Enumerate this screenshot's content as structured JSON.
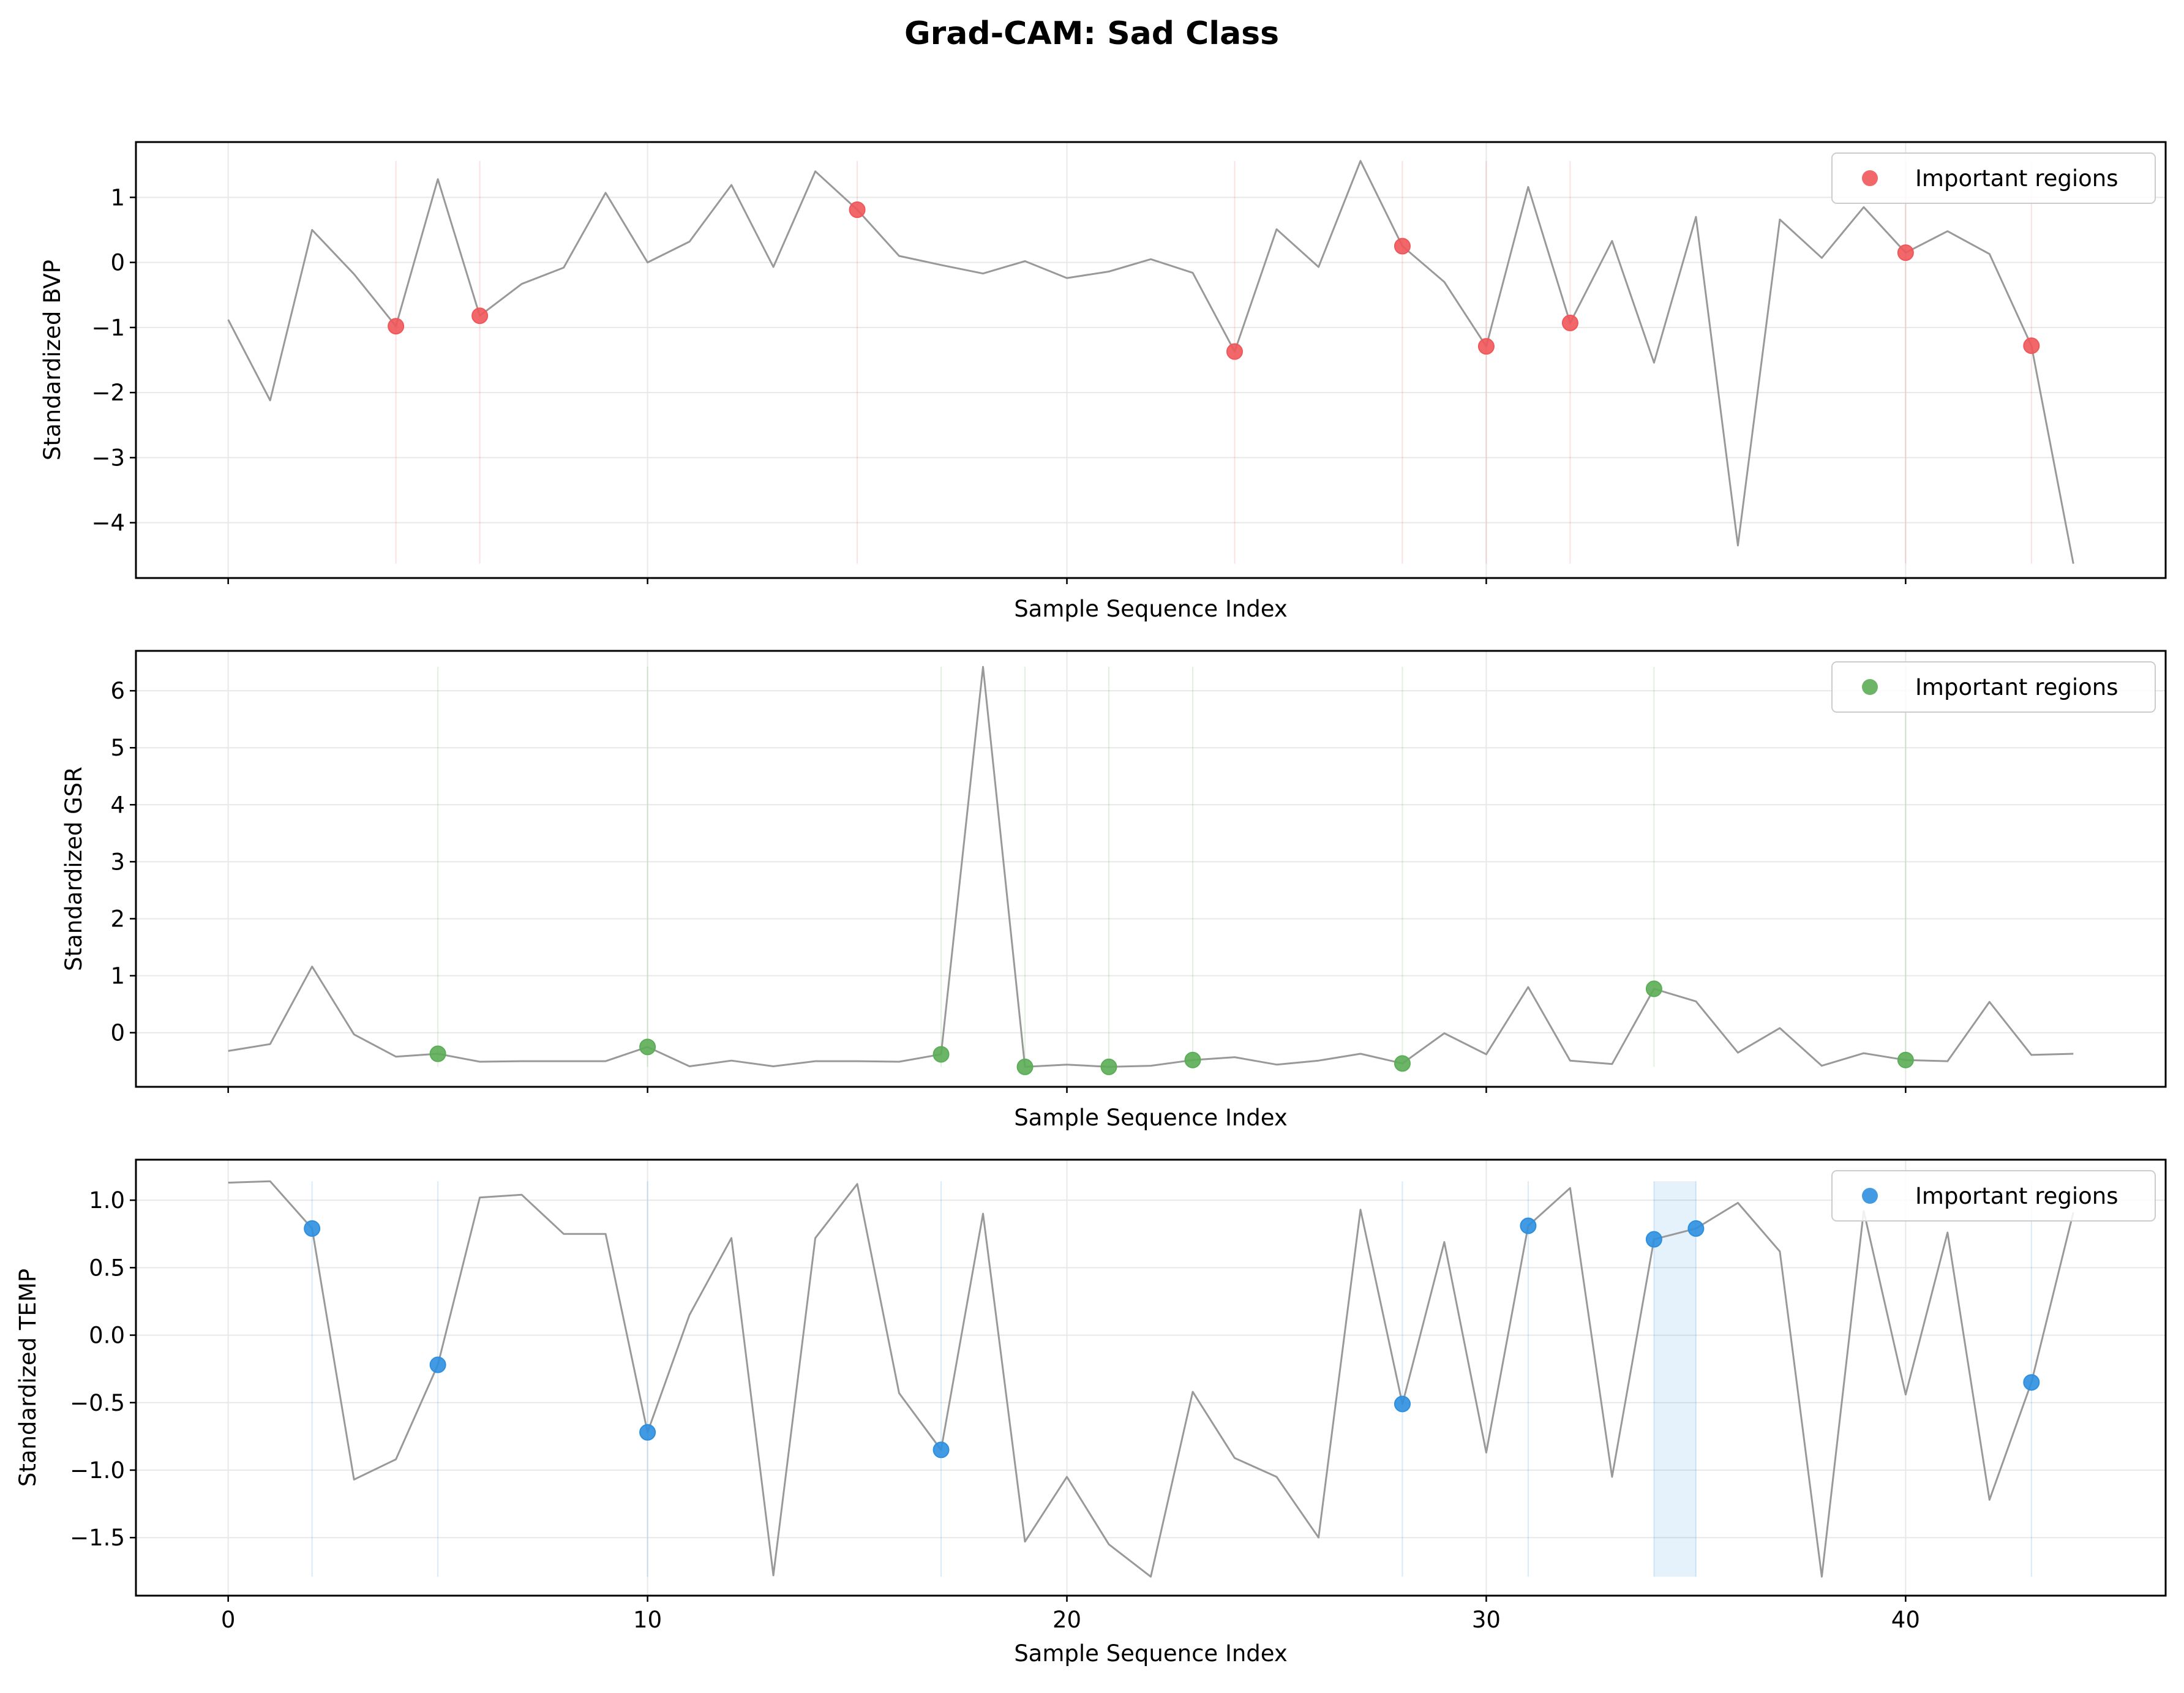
{
  "chart_data": {
    "title": "Grad-CAM: Sad Class",
    "type": "line",
    "panels": [
      {
        "ylabel": "Standardized BVP",
        "xlabel": "Sample Sequence Index",
        "legend_label": "Important regions",
        "legend_position": "top-right",
        "marker_color": "#f0575a",
        "ylim": [
          -4.85,
          1.85
        ],
        "yticks": [
          1,
          0,
          -1,
          -2,
          -3,
          -4
        ],
        "ytick_labels": [
          "1",
          "0",
          "−1",
          "−2",
          "−3",
          "−4"
        ],
        "x": [
          0,
          1,
          2,
          3,
          4,
          5,
          6,
          7,
          8,
          9,
          10,
          11,
          12,
          13,
          14,
          15,
          16,
          17,
          18,
          19,
          20,
          21,
          22,
          23,
          24,
          25,
          26,
          27,
          28,
          29,
          30,
          31,
          32,
          33,
          34,
          35,
          36,
          37,
          38,
          39,
          40,
          41,
          42,
          43,
          44
        ],
        "y": [
          -0.88,
          -2.12,
          0.5,
          -0.18,
          -0.98,
          1.28,
          -0.82,
          -0.33,
          -0.08,
          1.07,
          0.0,
          0.32,
          1.19,
          -0.07,
          1.4,
          0.81,
          0.1,
          -0.04,
          -0.17,
          0.02,
          -0.24,
          -0.14,
          0.05,
          -0.16,
          -1.37,
          0.51,
          -0.07,
          1.56,
          0.25,
          -0.3,
          -1.29,
          1.16,
          -0.93,
          0.33,
          -1.54,
          0.7,
          -4.35,
          0.66,
          0.07,
          0.85,
          0.15,
          0.48,
          0.13,
          -1.28,
          -4.63
        ],
        "important_indices": [
          4,
          6,
          15,
          24,
          28,
          30,
          32,
          40,
          43
        ],
        "highlight_bands": []
      },
      {
        "ylabel": "Standardized GSR",
        "xlabel": "Sample Sequence Index",
        "legend_label": "Important regions",
        "legend_position": "top-right",
        "marker_color": "#5cad57",
        "ylim": [
          -0.95,
          6.7
        ],
        "yticks": [
          6,
          5,
          4,
          3,
          2,
          1,
          0
        ],
        "ytick_labels": [
          "6",
          "5",
          "4",
          "3",
          "2",
          "1",
          "0"
        ],
        "x": [
          0,
          1,
          2,
          3,
          4,
          5,
          6,
          7,
          8,
          9,
          10,
          11,
          12,
          13,
          14,
          15,
          16,
          17,
          18,
          19,
          20,
          21,
          22,
          23,
          24,
          25,
          26,
          27,
          28,
          29,
          30,
          31,
          32,
          33,
          34,
          35,
          36,
          37,
          38,
          39,
          40,
          41,
          42,
          43,
          44
        ],
        "y": [
          -0.32,
          -0.2,
          1.16,
          -0.03,
          -0.42,
          -0.37,
          -0.51,
          -0.5,
          -0.5,
          -0.5,
          -0.25,
          -0.59,
          -0.49,
          -0.59,
          -0.5,
          -0.5,
          -0.51,
          -0.38,
          6.42,
          -0.6,
          -0.56,
          -0.6,
          -0.58,
          -0.48,
          -0.43,
          -0.56,
          -0.49,
          -0.37,
          -0.54,
          -0.01,
          -0.38,
          0.8,
          -0.49,
          -0.55,
          0.77,
          0.55,
          -0.35,
          0.08,
          -0.58,
          -0.36,
          -0.48,
          -0.5,
          0.54,
          -0.39,
          -0.37
        ],
        "important_indices": [
          5,
          10,
          17,
          19,
          21,
          23,
          28,
          34,
          40
        ],
        "highlight_bands": []
      },
      {
        "ylabel": "Standardized TEMP",
        "xlabel": "Sample Sequence Index",
        "legend_label": "Important regions",
        "legend_position": "top-right",
        "marker_color": "#2d8fe0",
        "ylim": [
          -1.93,
          1.3
        ],
        "yticks": [
          1.0,
          0.5,
          0.0,
          -0.5,
          -1.0,
          -1.5
        ],
        "ytick_labels": [
          "1.0",
          "0.5",
          "0.0",
          "−0.5",
          "−1.0",
          "−1.5"
        ],
        "x": [
          0,
          1,
          2,
          3,
          4,
          5,
          6,
          7,
          8,
          9,
          10,
          11,
          12,
          13,
          14,
          15,
          16,
          17,
          18,
          19,
          20,
          21,
          22,
          23,
          24,
          25,
          26,
          27,
          28,
          29,
          30,
          31,
          32,
          33,
          34,
          35,
          36,
          37,
          38,
          39,
          40,
          41,
          42,
          43,
          44
        ],
        "y": [
          1.13,
          1.14,
          0.79,
          -1.07,
          -0.92,
          -0.22,
          1.02,
          1.04,
          0.75,
          0.75,
          -0.72,
          0.15,
          0.72,
          -1.78,
          0.72,
          1.12,
          -0.43,
          -0.85,
          0.9,
          -1.53,
          -1.05,
          -1.55,
          -1.79,
          -0.42,
          -0.91,
          -1.05,
          -1.5,
          0.93,
          -0.51,
          0.69,
          -0.87,
          0.81,
          1.09,
          -1.05,
          0.71,
          0.79,
          0.98,
          0.62,
          -1.79,
          0.92,
          -0.44,
          0.76,
          -1.22,
          -0.35,
          0.91
        ],
        "important_indices": [
          2,
          5,
          10,
          17,
          28,
          31,
          34,
          35,
          43
        ],
        "highlight_bands": [
          [
            34,
            35
          ]
        ]
      }
    ],
    "xlim": [
      -2.2,
      46.2
    ],
    "xticks": [
      0,
      10,
      20,
      30,
      40
    ],
    "xtick_labels": [
      "0",
      "10",
      "20",
      "30",
      "40"
    ],
    "line_color": "#999999",
    "grid": true
  }
}
